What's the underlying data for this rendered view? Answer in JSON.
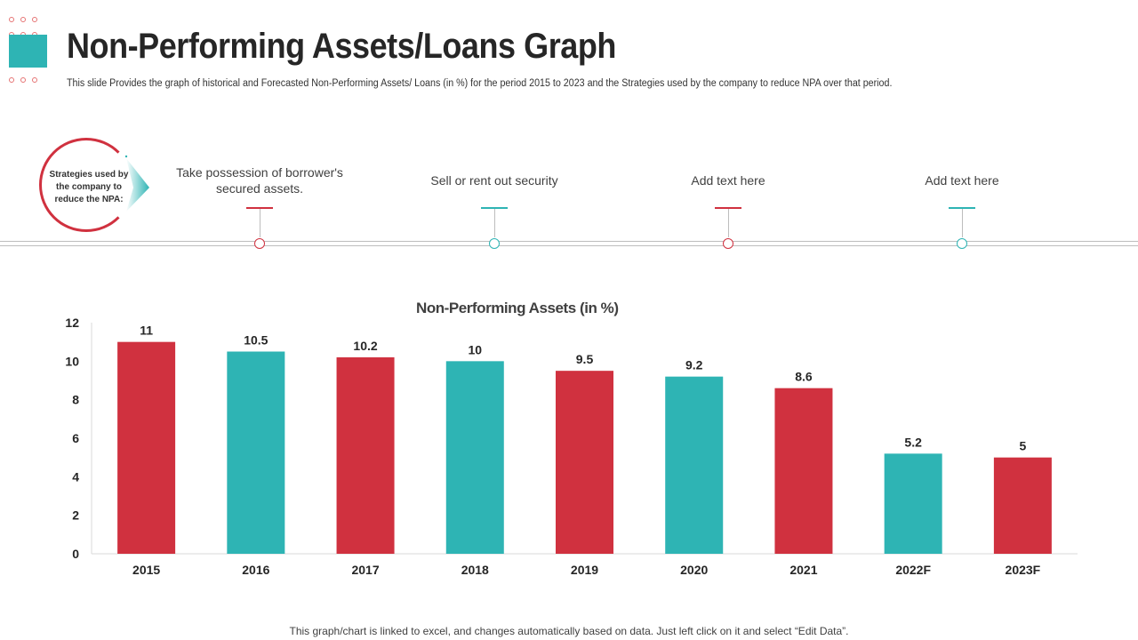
{
  "header": {
    "title": "Non-Performing Assets/Loans Graph",
    "subtitle": "This slide Provides the graph of historical and Forecasted Non-Performing Assets/ Loans (in %) for the period 2015 to 2023 and the Strategies used by the company to reduce NPA over that period."
  },
  "strategies": {
    "label": "Strategies used by the company to reduce the NPA:",
    "steps": [
      {
        "text": "Take possession of borrower's secured assets.",
        "color": "#d0313f"
      },
      {
        "text": "Sell or rent out security",
        "color": "#2eb4b4"
      },
      {
        "text": "Add text here",
        "color": "#d0313f"
      },
      {
        "text": "Add text here",
        "color": "#2eb4b4"
      }
    ]
  },
  "chart_data": {
    "type": "bar",
    "title": "Non-Performing Assets (in %)",
    "xlabel": "",
    "ylabel": "",
    "categories": [
      "2015",
      "2016",
      "2017",
      "2018",
      "2019",
      "2020",
      "2021",
      "2022F",
      "2023F"
    ],
    "values": [
      11,
      10.5,
      10.2,
      10,
      9.5,
      9.2,
      8.6,
      5.2,
      5
    ],
    "colors": [
      "#d0313f",
      "#2eb4b4",
      "#d0313f",
      "#2eb4b4",
      "#d0313f",
      "#2eb4b4",
      "#d0313f",
      "#2eb4b4",
      "#d0313f"
    ],
    "ylim": [
      0,
      12
    ],
    "yticks": [
      0,
      2,
      4,
      6,
      8,
      10,
      12
    ],
    "grid": false,
    "legend": "none"
  },
  "footnote": "This graph/chart is linked to excel, and changes automatically based on data. Just left click on it and select “Edit Data”."
}
